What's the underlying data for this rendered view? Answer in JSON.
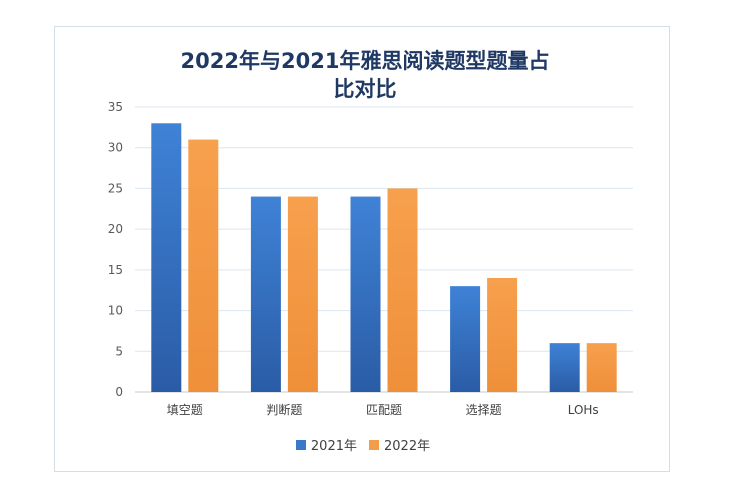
{
  "chart_data": {
    "type": "bar",
    "title": "2022年与2021年雅思阅读题型题量占比对比",
    "categories": [
      "填空题",
      "判断题",
      "匹配题",
      "选择题",
      "LOHs"
    ],
    "series": [
      {
        "name": "2021年",
        "values": [
          33,
          24,
          24,
          13,
          6
        ],
        "color": "#3a78c9"
      },
      {
        "name": "2022年",
        "values": [
          31,
          24,
          25,
          14,
          6
        ],
        "color": "#f39c4a"
      }
    ],
    "xlabel": "",
    "ylabel": "",
    "ylim": [
      0,
      35
    ],
    "yticks": [
      0,
      5,
      10,
      15,
      20,
      25,
      30,
      35
    ],
    "grid": true,
    "legend": "bottom"
  }
}
